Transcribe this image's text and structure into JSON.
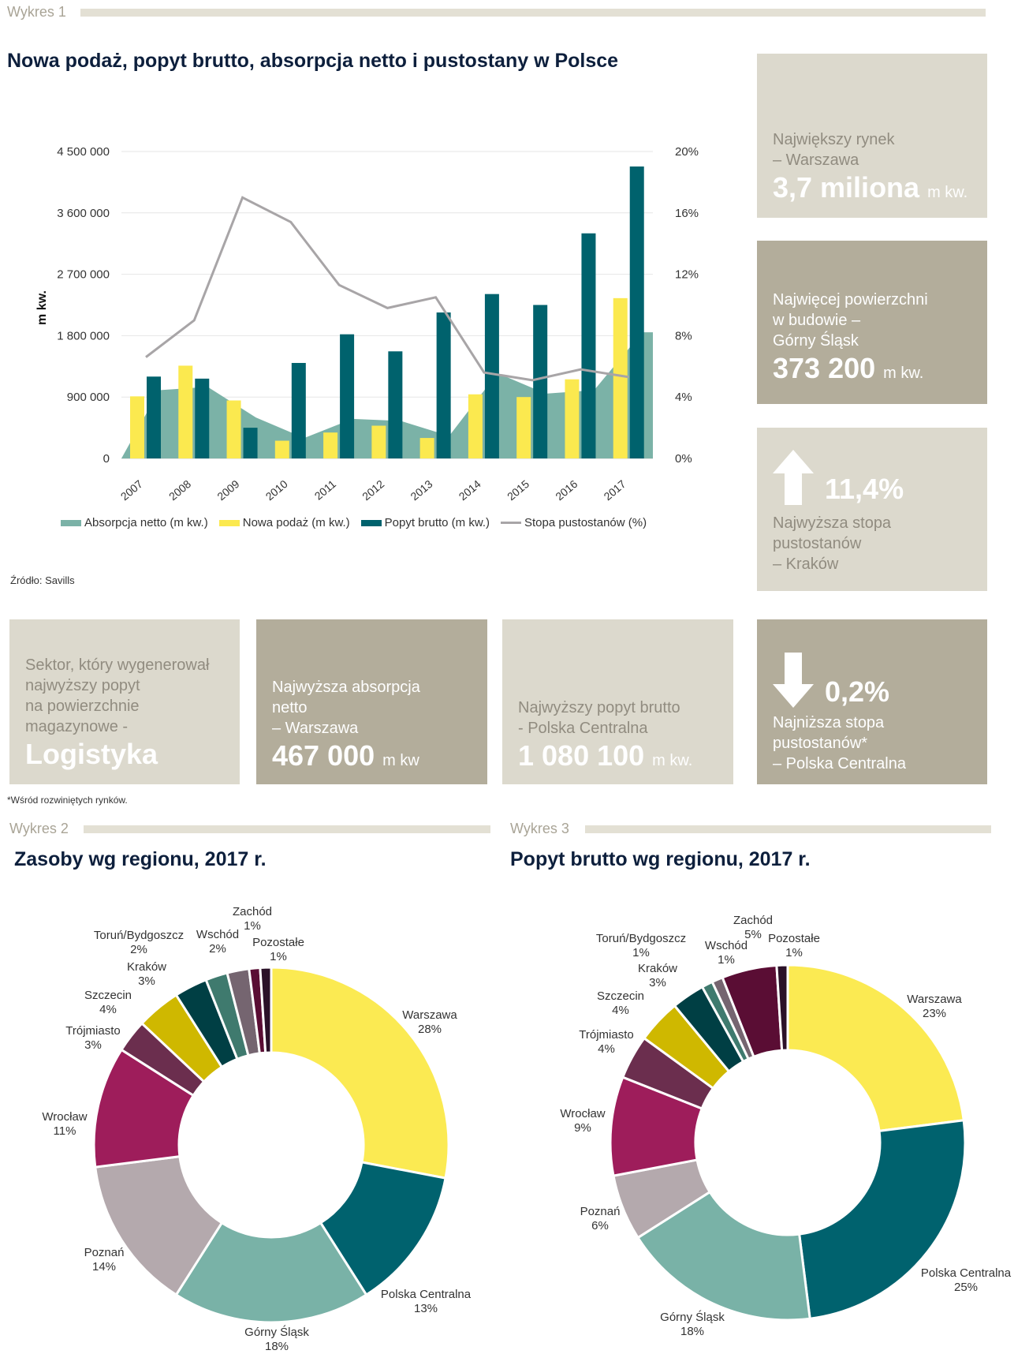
{
  "wykres1": {
    "label": "Wykres 1",
    "title": "Nowa podaż, popyt brutto, absorpcja netto i pustostany w Polsce",
    "source": "Źródło: Savills"
  },
  "wykres2": {
    "label": "Wykres 2",
    "title": "Zasoby wg regionu, 2017 r."
  },
  "wykres3": {
    "label": "Wykres 3",
    "title": "Popyt brutto wg regionu, 2017 r."
  },
  "colors": {
    "yellow": "#fbe94f",
    "teal": "#00626d",
    "absorption": "#7bb2a7",
    "vacancy": "#a8a5a7",
    "box_light": "#dcd9cd",
    "box_dark": "#b3ad9b"
  },
  "boxes": {
    "largest_market": {
      "line1": "Największy rynek",
      "line2": "– Warszawa",
      "value": "3,7 miliona",
      "unit": "m kw."
    },
    "construction": {
      "line1": "Najwięcej powierzchni",
      "line2": "w budowie –",
      "line3": "Górny Śląsk",
      "value": "373 200",
      "unit": "m kw."
    },
    "highest_vacancy": {
      "value": "11,4%",
      "line1": "Najwyższa stopa",
      "line2": "pustostanów",
      "line3": "– Kraków"
    },
    "sector": {
      "line1": "Sektor, który wygenerował",
      "line2": "najwyższy popyt",
      "line3": "na powierzchnie",
      "line4": "magazynowe -",
      "value": "Logistyka"
    },
    "absorption": {
      "line1": "Najwyższa absorpcja",
      "line2": "netto",
      "line3": "– Warszawa",
      "value": "467 000",
      "unit": "m kw"
    },
    "demand": {
      "line1": "Najwyższy popyt brutto",
      "line2": "- Polska Centralna",
      "value": "1 080 100",
      "unit": "m kw."
    },
    "lowest_vacancy": {
      "value": "0,2%",
      "line1": "Najniższa stopa",
      "line2": "pustostanów*",
      "line3": "– Polska Centralna"
    }
  },
  "footnote": "*Wśród  rozwiniętych rynków.",
  "chart_data": [
    {
      "type": "bar",
      "title": "Nowa podaż, popyt brutto, absorpcja netto i pustostany w Polsce",
      "ylabel": "m kw.",
      "ylim": [
        0,
        4500000
      ],
      "y_ticks": [
        "0",
        "900 000",
        "1 800 000",
        "2 700 000",
        "3 600 000",
        "4 500 000"
      ],
      "y2lim": [
        0,
        20
      ],
      "y2_ticks": [
        "0%",
        "4%",
        "8%",
        "12%",
        "16%",
        "20%"
      ],
      "grid": true,
      "legend": "bottom",
      "categories": [
        "2007",
        "2008",
        "2009",
        "2010",
        "2011",
        "2012",
        "2013",
        "2014",
        "2015",
        "2016",
        "2017"
      ],
      "series": [
        {
          "name": "Absorpcja netto (m kw.)",
          "kind": "area",
          "values": [
            1000000,
            1050000,
            600000,
            300000,
            580000,
            550000,
            330000,
            1250000,
            950000,
            1000000,
            1850000
          ]
        },
        {
          "name": "Nowa podaż (m kw.)",
          "kind": "bar",
          "values": [
            910000,
            1360000,
            850000,
            260000,
            380000,
            480000,
            300000,
            940000,
            900000,
            1160000,
            2350000
          ]
        },
        {
          "name": "Popyt brutto (m kw.)",
          "kind": "bar",
          "values": [
            1200000,
            1170000,
            450000,
            1400000,
            1820000,
            1570000,
            2140000,
            2410000,
            2250000,
            3300000,
            4280000
          ]
        },
        {
          "name": "Stopa pustostanów (%)",
          "kind": "line",
          "axis": "right",
          "values": [
            6.6,
            9.0,
            17.0,
            15.4,
            11.3,
            9.8,
            10.5,
            5.6,
            5.1,
            5.8,
            5.3
          ]
        }
      ]
    },
    {
      "type": "pie",
      "title": "Zasoby wg regionu, 2017 r.",
      "categories": [
        "Warszawa",
        "Polska Centralna",
        "Górny Śląsk",
        "Poznań",
        "Wrocław",
        "Trójmiasto",
        "Szczecin",
        "Kraków",
        "Toruń/Bydgoszcz",
        "Wschód",
        "Zachód",
        "Pozostałe"
      ],
      "values": [
        28,
        13,
        18,
        14,
        11,
        3,
        4,
        3,
        2,
        2,
        1,
        1
      ],
      "labels": [
        "28%",
        "13%",
        "18%",
        "14%",
        "11%",
        "3%",
        "4%",
        "3%",
        "2%",
        "2%",
        "1%",
        "1%"
      ],
      "colors": [
        "#fbea52",
        "#00626e",
        "#79b2a7",
        "#b4a9ad",
        "#9e1d5b",
        "#6b2e4e",
        "#cfb800",
        "#003f44",
        "#3f7a6e",
        "#756570",
        "#5a0d34",
        "#2b1128"
      ]
    },
    {
      "type": "pie",
      "title": "Popyt brutto wg regionu, 2017 r.",
      "categories": [
        "Warszawa",
        "Polska Centralna",
        "Górny Śląsk",
        "Poznań",
        "Wrocław",
        "Trójmiasto",
        "Szczecin",
        "Kraków",
        "Toruń/Bydgoszcz",
        "Wschód",
        "Zachód",
        "Pozostałe"
      ],
      "values": [
        23,
        25,
        18,
        6,
        9,
        4,
        4,
        3,
        1,
        1,
        5,
        1
      ],
      "labels": [
        "23%",
        "25%",
        "18%",
        "6%",
        "9%",
        "4%",
        "4%",
        "3%",
        "1%",
        "1%",
        "5%",
        "1%"
      ],
      "colors": [
        "#fbea52",
        "#00626e",
        "#79b2a7",
        "#b4a9ad",
        "#9e1d5b",
        "#6b2e4e",
        "#cfb800",
        "#003f44",
        "#3f7a6e",
        "#756570",
        "#5a0d34",
        "#2b1128"
      ]
    }
  ]
}
